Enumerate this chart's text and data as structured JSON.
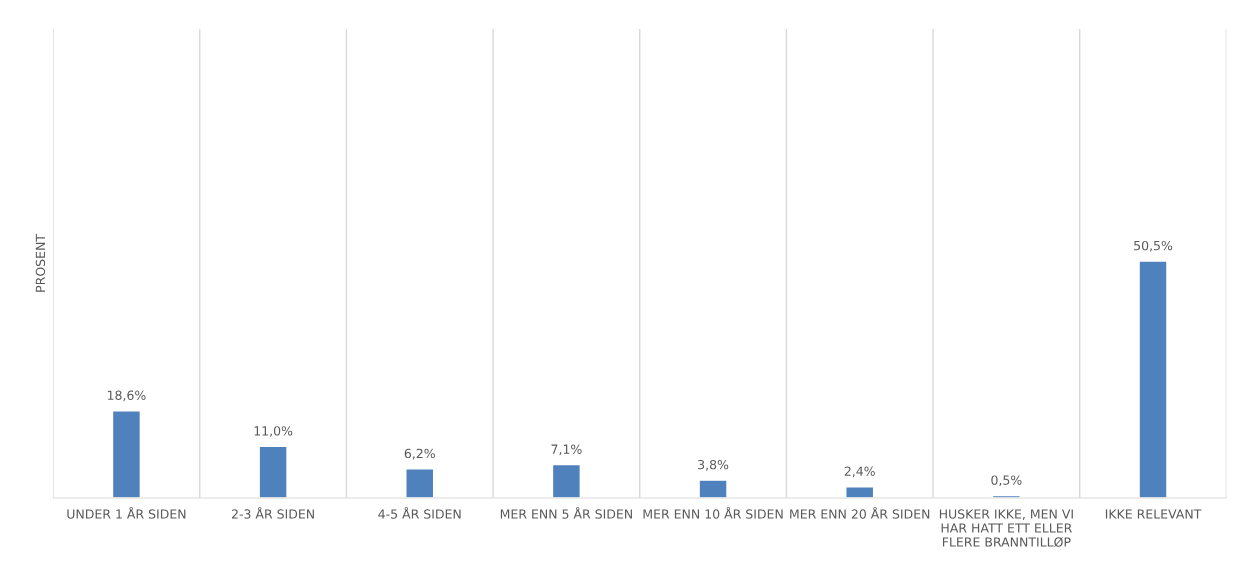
{
  "chart_data": {
    "type": "bar",
    "ylabel": "PROSENT",
    "categories": [
      "UNDER 1 ÅR SIDEN",
      "2-3 ÅR SIDEN",
      "4-5 ÅR SIDEN",
      "MER ENN 5 ÅR SIDEN",
      "MER ENN 10 ÅR SIDEN",
      "MER ENN 20 ÅR SIDEN",
      "HUSKER IKKE, MEN VI HAR HATT ETT ELLER FLERE BRANNTILLØP",
      "IKKE RELEVANT"
    ],
    "values": [
      18.6,
      11.0,
      6.2,
      7.1,
      3.8,
      2.4,
      0.5,
      50.5
    ],
    "value_labels": [
      "18,6%",
      "11,0%",
      "6,2%",
      "7,1%",
      "3,8%",
      "2,4%",
      "0,5%",
      "50,5%"
    ],
    "color": "#4f81bd",
    "ylim": [
      0,
      100
    ],
    "tick_labels": "x",
    "grid": "x",
    "legend": false
  }
}
